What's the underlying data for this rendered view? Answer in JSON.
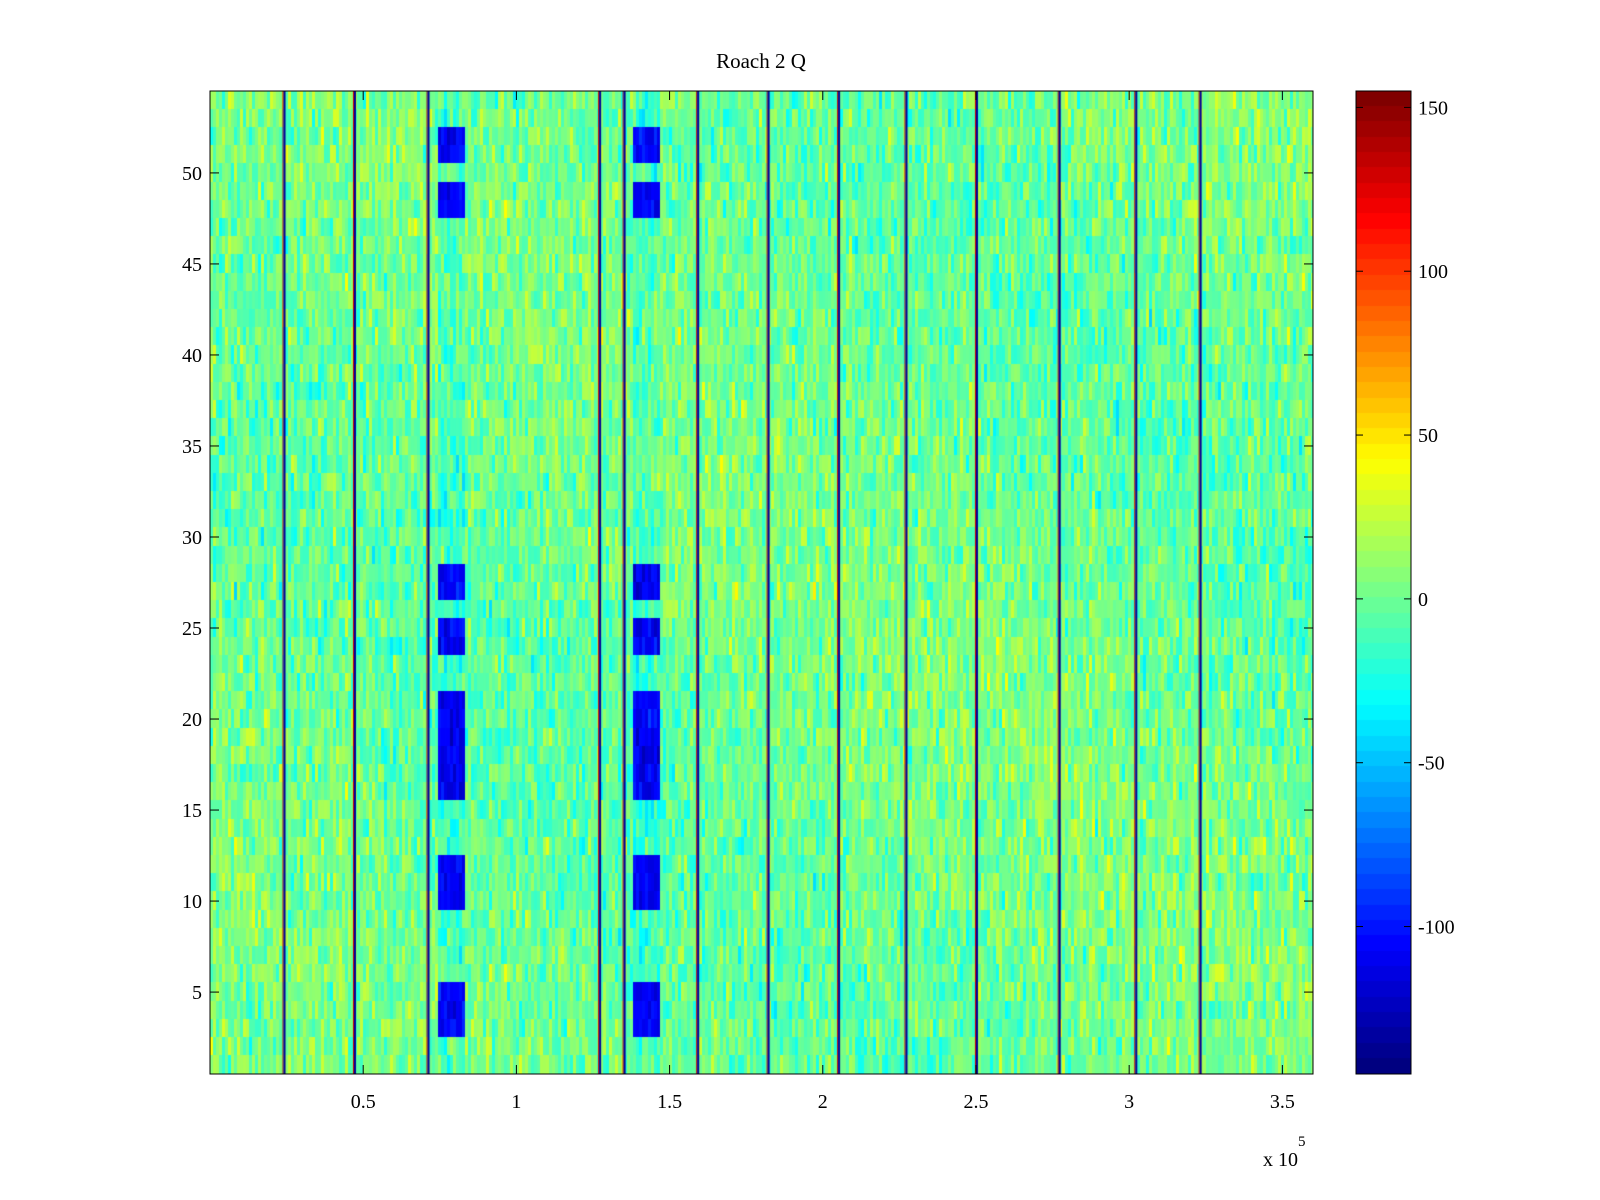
{
  "chart_data": {
    "type": "heatmap",
    "title": "Roach 2 Q",
    "xlabel": "",
    "ylabel": "",
    "x_exponent_label": "x 10",
    "x_exponent_power": "5",
    "x_multiplier": 100000,
    "xlim": [
      0,
      3.6
    ],
    "ylim": [
      0.5,
      54.5
    ],
    "x_ticks": [
      0.5,
      1,
      1.5,
      2,
      2.5,
      3,
      3.5
    ],
    "x_tick_labels": [
      "0.5",
      "1",
      "1.5",
      "2",
      "2.5",
      "3",
      "3.5"
    ],
    "y_ticks": [
      5,
      10,
      15,
      20,
      25,
      30,
      35,
      40,
      45,
      50
    ],
    "y_tick_labels": [
      "5",
      "10",
      "15",
      "20",
      "25",
      "30",
      "35",
      "40",
      "45",
      "50"
    ],
    "rows": 54,
    "colormap": "jet",
    "clim": [
      -145,
      155
    ],
    "background_mean": 0,
    "colorbar_ticks": [
      -100,
      -50,
      0,
      50,
      100,
      150
    ],
    "colorbar_tick_labels": [
      "-100",
      "-50",
      "0",
      "50",
      "100",
      "150"
    ],
    "vertical_stripes_x": [
      0.24,
      0.47,
      0.71,
      1.27,
      1.35,
      1.59,
      1.82,
      2.05,
      2.27,
      2.5,
      2.77,
      3.02,
      3.23
    ],
    "low_value_bands": [
      {
        "x_range": [
          0.74,
          0.83
        ],
        "y_rows": [
          3,
          4,
          5,
          10,
          11,
          12,
          16,
          17,
          18,
          19,
          20,
          21,
          24,
          25,
          27,
          28,
          48,
          49,
          51,
          52
        ],
        "value": -110
      },
      {
        "x_range": [
          1.38,
          1.47
        ],
        "y_rows": [
          3,
          4,
          5,
          10,
          11,
          12,
          16,
          17,
          18,
          19,
          20,
          21,
          24,
          25,
          27,
          28,
          48,
          49,
          51,
          52
        ],
        "value": -110
      }
    ]
  }
}
